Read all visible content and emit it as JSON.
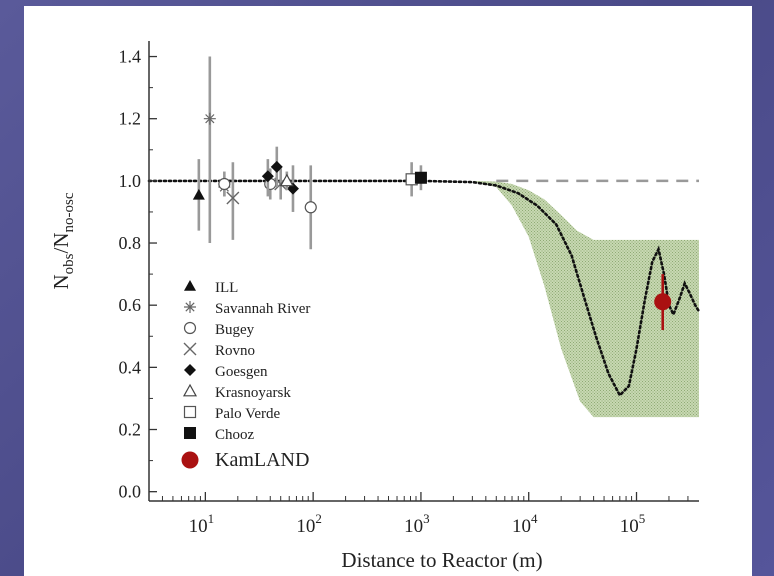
{
  "chart_data": {
    "type": "scatter",
    "xlabel": "Distance to Reactor (m)",
    "ylabel_main": "N",
    "ylabel_sub1": "obs",
    "ylabel_slash": "/N",
    "ylabel_sub2": "no-osc",
    "xscale": "log",
    "xlim": [
      3.0,
      380000
    ],
    "ylim": [
      -0.03,
      1.45
    ],
    "x_ticks": [
      {
        "value": 10,
        "base": "10",
        "exp": "1"
      },
      {
        "value": 100,
        "base": "10",
        "exp": "2"
      },
      {
        "value": 1000,
        "base": "10",
        "exp": "3"
      },
      {
        "value": 10000,
        "base": "10",
        "exp": "4"
      },
      {
        "value": 100000,
        "base": "10",
        "exp": "5"
      }
    ],
    "y_ticks": [
      {
        "value": 0.0,
        "label": "0.0"
      },
      {
        "value": 0.2,
        "label": "0.2"
      },
      {
        "value": 0.4,
        "label": "0.4"
      },
      {
        "value": 0.6,
        "label": "0.6"
      },
      {
        "value": 0.8,
        "label": "0.8"
      },
      {
        "value": 1.0,
        "label": "1.0"
      },
      {
        "value": 1.2,
        "label": "1.2"
      },
      {
        "value": 1.4,
        "label": "1.4"
      }
    ],
    "reference_line": {
      "y": 1.0,
      "from_x": 5000,
      "style": "dashed"
    },
    "prediction_band": {
      "color": "#b9cfa0",
      "upper": [
        [
          3000,
          1.0
        ],
        [
          5000,
          0.998
        ],
        [
          7000,
          0.99
        ],
        [
          10000,
          0.97
        ],
        [
          14000,
          0.94
        ],
        [
          20000,
          0.89
        ],
        [
          28000,
          0.84
        ],
        [
          40000,
          0.81
        ],
        [
          380000,
          0.81
        ]
      ],
      "lower": [
        [
          3000,
          1.0
        ],
        [
          5000,
          0.98
        ],
        [
          7000,
          0.92
        ],
        [
          10000,
          0.82
        ],
        [
          14000,
          0.66
        ],
        [
          20000,
          0.46
        ],
        [
          30000,
          0.29
        ],
        [
          40000,
          0.24
        ],
        [
          380000,
          0.24
        ]
      ]
    },
    "oscillation_curve": [
      [
        3.0,
        1.0
      ],
      [
        1000,
        1.0
      ],
      [
        3000,
        0.996
      ],
      [
        5000,
        0.985
      ],
      [
        8000,
        0.96
      ],
      [
        12000,
        0.92
      ],
      [
        18000,
        0.86
      ],
      [
        25000,
        0.76
      ],
      [
        33000,
        0.62
      ],
      [
        42000,
        0.5
      ],
      [
        55000,
        0.38
      ],
      [
        70000,
        0.31
      ],
      [
        85000,
        0.34
      ],
      [
        100000,
        0.46
      ],
      [
        120000,
        0.62
      ],
      [
        140000,
        0.74
      ],
      [
        160000,
        0.78
      ],
      [
        180000,
        0.7
      ],
      [
        200000,
        0.6
      ],
      [
        220000,
        0.57
      ],
      [
        250000,
        0.62
      ],
      [
        280000,
        0.67
      ],
      [
        310000,
        0.64
      ],
      [
        350000,
        0.6
      ],
      [
        380000,
        0.58
      ]
    ],
    "series": [
      {
        "name": "ILL",
        "marker": "filled-triangle",
        "points": [
          {
            "x": 8.7,
            "y": 0.955,
            "ylo": 0.84,
            "yhi": 1.07
          }
        ]
      },
      {
        "name": "Savannah River",
        "marker": "asterisk",
        "points": [
          {
            "x": 11,
            "y": 1.2,
            "ylo": 0.8,
            "yhi": 1.4
          },
          {
            "x": 15,
            "y": 0.98,
            "ylo": 0.95,
            "yhi": 1.01
          }
        ]
      },
      {
        "name": "Bugey",
        "marker": "open-circle",
        "points": [
          {
            "x": 15,
            "y": 0.99,
            "ylo": 0.95,
            "yhi": 1.03
          },
          {
            "x": 40,
            "y": 0.99,
            "ylo": 0.94,
            "yhi": 1.04
          },
          {
            "x": 95,
            "y": 0.915,
            "ylo": 0.78,
            "yhi": 1.05
          }
        ]
      },
      {
        "name": "Rovno",
        "marker": "cross",
        "points": [
          {
            "x": 18,
            "y": 0.945,
            "ylo": 0.81,
            "yhi": 1.06
          },
          {
            "x": 50,
            "y": 0.99,
            "ylo": 0.94,
            "yhi": 1.04
          }
        ]
      },
      {
        "name": "Goesgen",
        "marker": "filled-diamond",
        "points": [
          {
            "x": 38,
            "y": 1.015,
            "ylo": 0.95,
            "yhi": 1.07
          },
          {
            "x": 46,
            "y": 1.045,
            "ylo": 0.98,
            "yhi": 1.11
          },
          {
            "x": 65,
            "y": 0.975,
            "ylo": 0.9,
            "yhi": 1.05
          }
        ]
      },
      {
        "name": "Krasnoyarsk",
        "marker": "open-triangle",
        "points": [
          {
            "x": 57,
            "y": 1.0,
            "ylo": 0.97,
            "yhi": 1.03
          }
        ]
      },
      {
        "name": "Palo Verde",
        "marker": "open-square",
        "points": [
          {
            "x": 820,
            "y": 1.005,
            "ylo": 0.95,
            "yhi": 1.06
          }
        ]
      },
      {
        "name": "Chooz",
        "marker": "filled-square",
        "points": [
          {
            "x": 1000,
            "y": 1.01,
            "ylo": 0.97,
            "yhi": 1.05
          }
        ]
      },
      {
        "name": "KamLAND",
        "marker": "big-red-dot",
        "color": "#aa1111",
        "points": [
          {
            "x": 175000,
            "y": 0.611,
            "ylo": 0.52,
            "yhi": 0.7
          }
        ]
      }
    ],
    "legend_placement": "bottom-left"
  }
}
